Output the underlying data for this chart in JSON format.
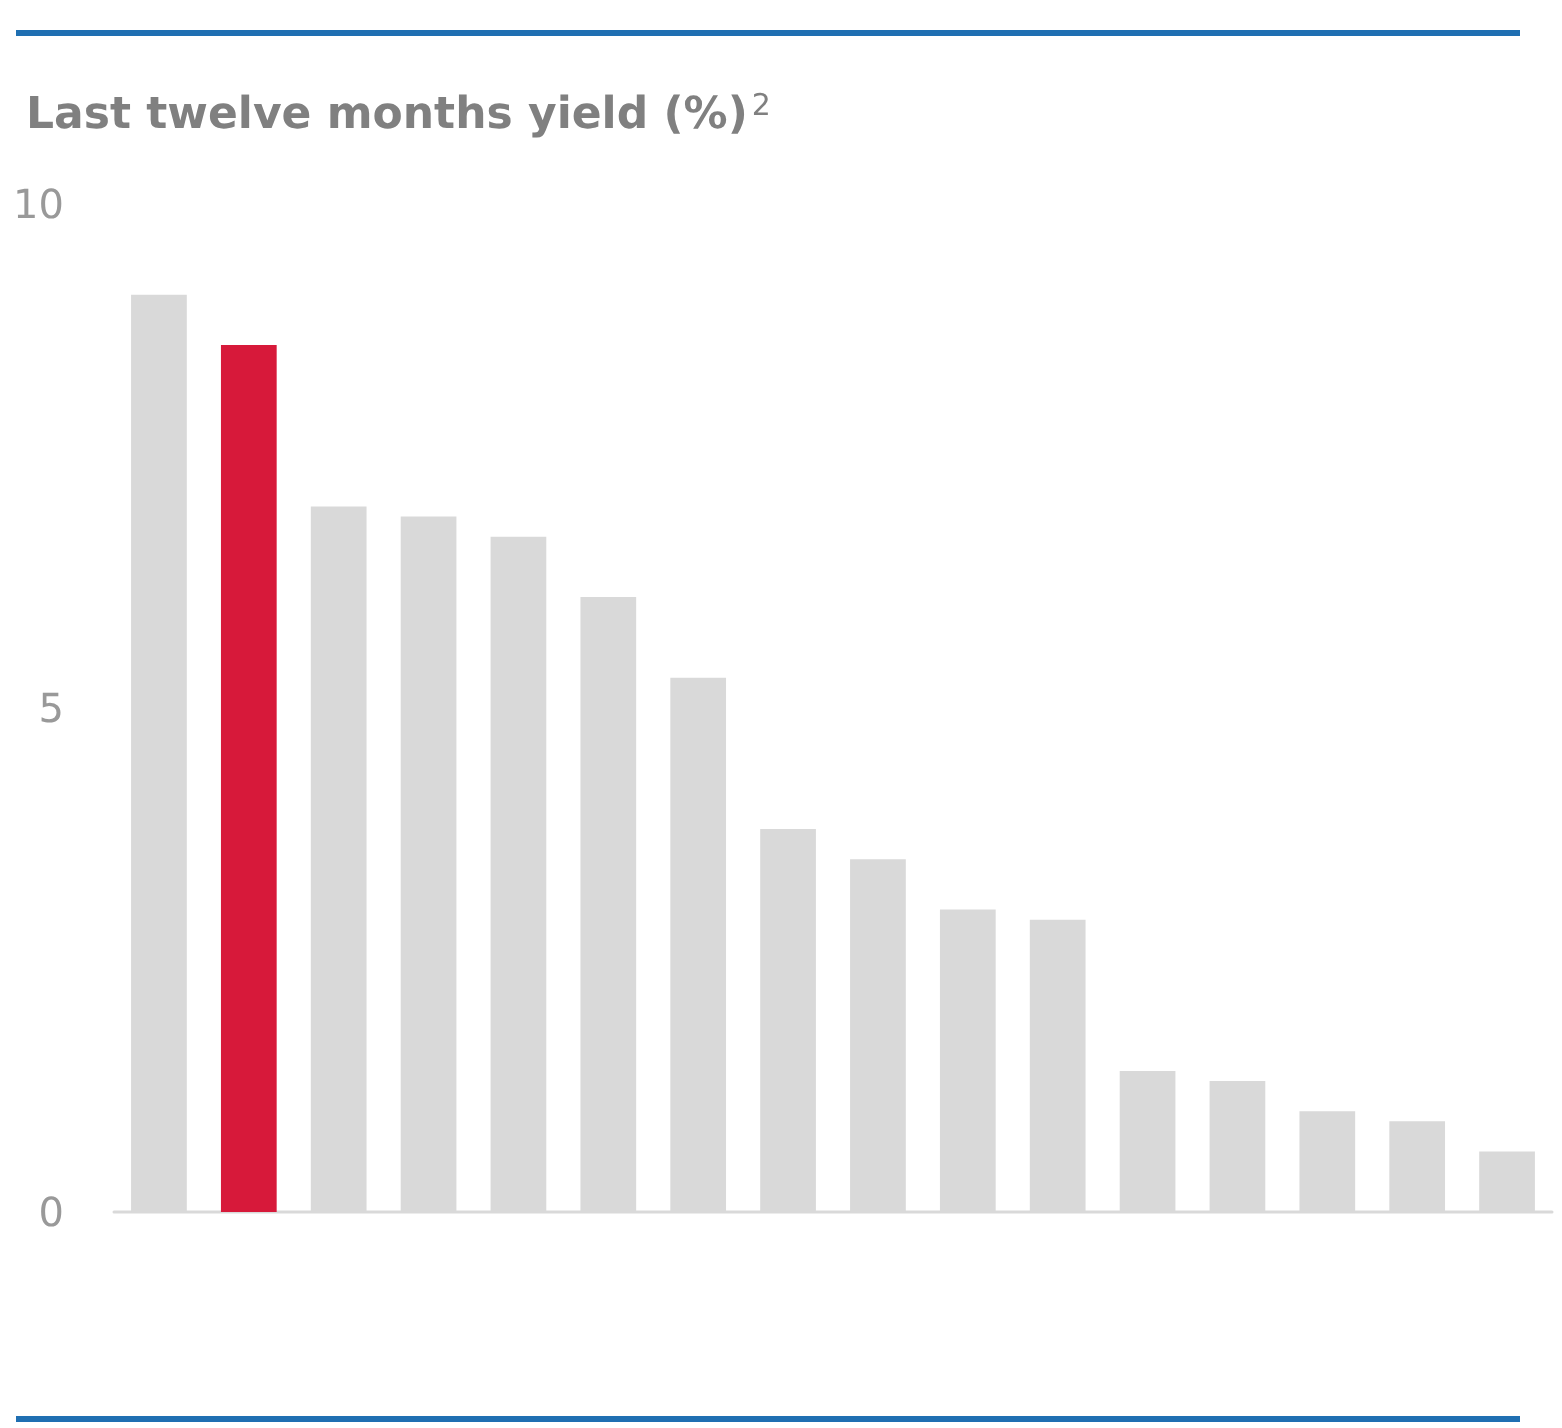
{
  "chart_data": {
    "type": "bar",
    "title": "Last twelve months yield (%)$^{2}$",
    "categories": [
      null,
      null,
      null,
      null,
      null,
      null,
      null,
      null,
      null,
      null,
      null,
      null,
      null,
      null,
      null,
      null
    ],
    "values": [
      9.1,
      8.6,
      7.0,
      6.9,
      6.7,
      6.1,
      5.3,
      3.8,
      3.5,
      3.0,
      2.9,
      1.4,
      1.3,
      1.0,
      0.9,
      0.6
    ],
    "colors": [
      "#d9d9d9",
      "#d7193a",
      "#d9d9d9",
      "#d9d9d9",
      "#d9d9d9",
      "#d9d9d9",
      "#d9d9d9",
      "#d9d9d9",
      "#d9d9d9",
      "#d9d9d9",
      "#d9d9d9",
      "#d9d9d9",
      "#d9d9d9",
      "#d9d9d9",
      "#d9d9d9",
      "#d9d9d9"
    ],
    "ylim": [
      0,
      10
    ],
    "yticks": [
      0,
      5,
      10
    ],
    "grid": false
  }
}
